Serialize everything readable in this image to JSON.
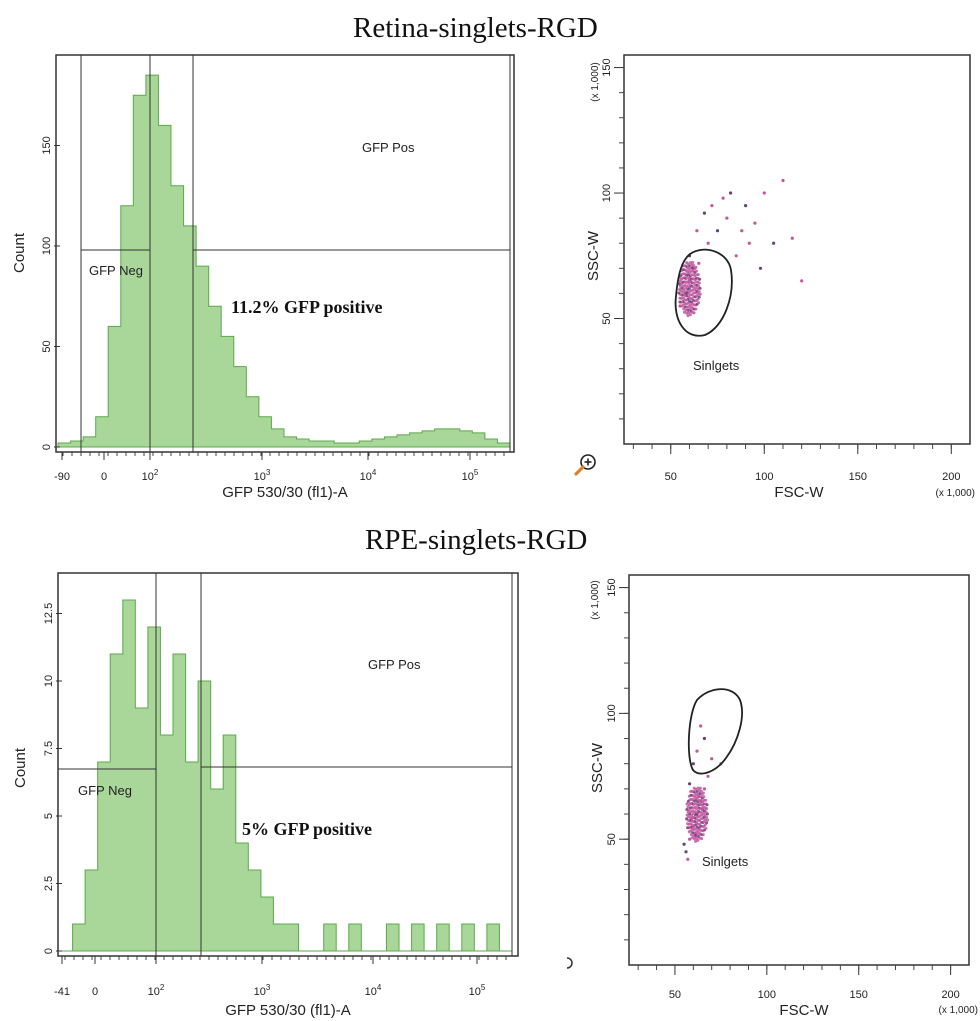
{
  "sections": [
    {
      "title": "Retina-singlets-RGD",
      "histogram": {
        "ylabel": "Count",
        "xlabel": "GFP  530/30 (fl1)-A",
        "y_ticks": [
          "0",
          "50",
          "100",
          "150"
        ],
        "x_ticks": [
          {
            "base": "-90",
            "exp": ""
          },
          {
            "base": "0",
            "exp": ""
          },
          {
            "base": "10",
            "exp": "2"
          },
          {
            "base": "10",
            "exp": "3"
          },
          {
            "base": "10",
            "exp": "4"
          },
          {
            "base": "10",
            "exp": "5"
          }
        ],
        "gate_neg_label": "GFP Neg",
        "gate_pos_label": "GFP Pos",
        "percent_text": "11.2% GFP positive"
      },
      "scatter": {
        "xlabel": "FSC-W",
        "ylabel": "SSC-W",
        "x_unit": "(x 1,000)",
        "y_unit": "(x 1,000)",
        "x_ticks": [
          "50",
          "100",
          "150",
          "200"
        ],
        "y_ticks": [
          "50",
          "100",
          "150"
        ],
        "gate_label": "Sinlgets"
      }
    },
    {
      "title": "RPE-singlets-RGD",
      "histogram": {
        "ylabel": "Count",
        "xlabel": "GFP  530/30 (fl1)-A",
        "y_ticks": [
          "0",
          "2.5",
          "5",
          "7.5",
          "10",
          "12.5"
        ],
        "x_ticks": [
          {
            "base": "-41",
            "exp": ""
          },
          {
            "base": "0",
            "exp": ""
          },
          {
            "base": "10",
            "exp": "2"
          },
          {
            "base": "10",
            "exp": "3"
          },
          {
            "base": "10",
            "exp": "4"
          },
          {
            "base": "10",
            "exp": "5"
          }
        ],
        "gate_neg_label": "GFP Neg",
        "gate_pos_label": "GFP Pos",
        "percent_text": "5% GFP positive"
      },
      "scatter": {
        "xlabel": "FSC-W",
        "ylabel": "SSC-W",
        "x_unit": "(x 1,000)",
        "y_unit": "(x 1,000)",
        "x_ticks": [
          "50",
          "100",
          "150",
          "200"
        ],
        "y_ticks": [
          "50",
          "100",
          "150"
        ],
        "gate_label": "Sinlgets"
      }
    }
  ],
  "colors": {
    "histogram_fill": "#a9d79a",
    "histogram_stroke": "#5aa84a",
    "scatter_point": "#c4569e",
    "scatter_point_dark": "#6b3f7a",
    "axis": "#333333"
  },
  "icons": {
    "zoom": "magnifier-plus-icon"
  },
  "chart_data": [
    {
      "type": "histogram",
      "panel": "Retina-singlets-RGD histogram",
      "title": "",
      "xlabel": "GFP  530/30 (fl1)-A",
      "ylabel": "Count",
      "ylim": [
        0,
        195
      ],
      "x_scale": "biexponential",
      "x_tick_labels": [
        "-90",
        "0",
        "10^2",
        "10^3",
        "10^4",
        "10^5"
      ],
      "series": [
        {
          "values": [
            2,
            3,
            5,
            15,
            60,
            120,
            175,
            185,
            160,
            130,
            110,
            90,
            70,
            55,
            40,
            25,
            15,
            9,
            5,
            4,
            3,
            3,
            2,
            2,
            3,
            4,
            5,
            6,
            7,
            8,
            9,
            9,
            8,
            7,
            4,
            2
          ]
        }
      ],
      "gates": [
        {
          "name": "GFP Neg",
          "x_range": [
            "-90",
            "10^2"
          ]
        },
        {
          "name": "GFP Pos",
          "x_range": [
            "~2x10^2",
            "max"
          ]
        }
      ],
      "annotation": "11.2% GFP positive"
    },
    {
      "type": "scatter",
      "panel": "Retina-singlets-RGD dot plot",
      "title": "",
      "xlabel": "FSC-W",
      "ylabel": "SSC-W",
      "xlim": [
        25,
        210
      ],
      "ylim": [
        0,
        155
      ],
      "x_units": "(x 1,000)",
      "y_units": "(x 1,000)",
      "points": [
        [
          58,
          60
        ],
        [
          55,
          55
        ],
        [
          60,
          65
        ],
        [
          62,
          70
        ],
        [
          65,
          72
        ],
        [
          70,
          80
        ],
        [
          75,
          85
        ],
        [
          80,
          90
        ],
        [
          85,
          75
        ],
        [
          90,
          95
        ],
        [
          95,
          88
        ],
        [
          100,
          100
        ],
        [
          105,
          80
        ],
        [
          110,
          105
        ],
        [
          72,
          95
        ],
        [
          68,
          92
        ],
        [
          78,
          98
        ],
        [
          88,
          85
        ],
        [
          98,
          70
        ],
        [
          115,
          82
        ],
        [
          120,
          65
        ],
        [
          82,
          100
        ],
        [
          92,
          80
        ],
        [
          64,
          85
        ],
        [
          60,
          75
        ]
      ],
      "gate": {
        "name": "Sinlgets",
        "center": [
          60,
          62
        ]
      }
    },
    {
      "type": "histogram",
      "panel": "RPE-singlets-RGD histogram",
      "title": "",
      "xlabel": "GFP  530/30 (fl1)-A",
      "ylabel": "Count",
      "ylim": [
        0,
        14
      ],
      "x_scale": "biexponential",
      "x_tick_labels": [
        "-41",
        "0",
        "10^2",
        "10^3",
        "10^4",
        "10^5"
      ],
      "series": [
        {
          "values": [
            0,
            1,
            3,
            7,
            11,
            13,
            9,
            12,
            8,
            11,
            7,
            10,
            6,
            8,
            4,
            3,
            2,
            1,
            1,
            0,
            0,
            1,
            0,
            1,
            0,
            0,
            1,
            0,
            1,
            0,
            1,
            0,
            1,
            0,
            1,
            0
          ]
        }
      ],
      "gates": [
        {
          "name": "GFP Neg",
          "x_range": [
            "-41",
            "10^2"
          ]
        },
        {
          "name": "GFP Pos",
          "x_range": [
            "~2x10^2",
            "max"
          ]
        }
      ],
      "annotation": "5% GFP positive"
    },
    {
      "type": "scatter",
      "panel": "RPE-singlets-RGD dot plot",
      "title": "",
      "xlabel": "FSC-W",
      "ylabel": "SSC-W",
      "xlim": [
        25,
        210
      ],
      "ylim": [
        0,
        155
      ],
      "x_units": "(x 1,000)",
      "y_units": "(x 1,000)",
      "points": [
        [
          56,
          45
        ],
        [
          58,
          50
        ],
        [
          60,
          55
        ],
        [
          62,
          60
        ],
        [
          64,
          65
        ],
        [
          66,
          70
        ],
        [
          55,
          48
        ],
        [
          59,
          58
        ],
        [
          63,
          67
        ],
        [
          61,
          52
        ],
        [
          68,
          75
        ],
        [
          57,
          42
        ],
        [
          60,
          80
        ],
        [
          62,
          85
        ],
        [
          64,
          95
        ],
        [
          66,
          90
        ],
        [
          70,
          82
        ],
        [
          75,
          80
        ],
        [
          58,
          72
        ],
        [
          65,
          62
        ]
      ],
      "gate": {
        "name": "Sinlgets",
        "center": [
          62,
          60
        ]
      }
    }
  ]
}
